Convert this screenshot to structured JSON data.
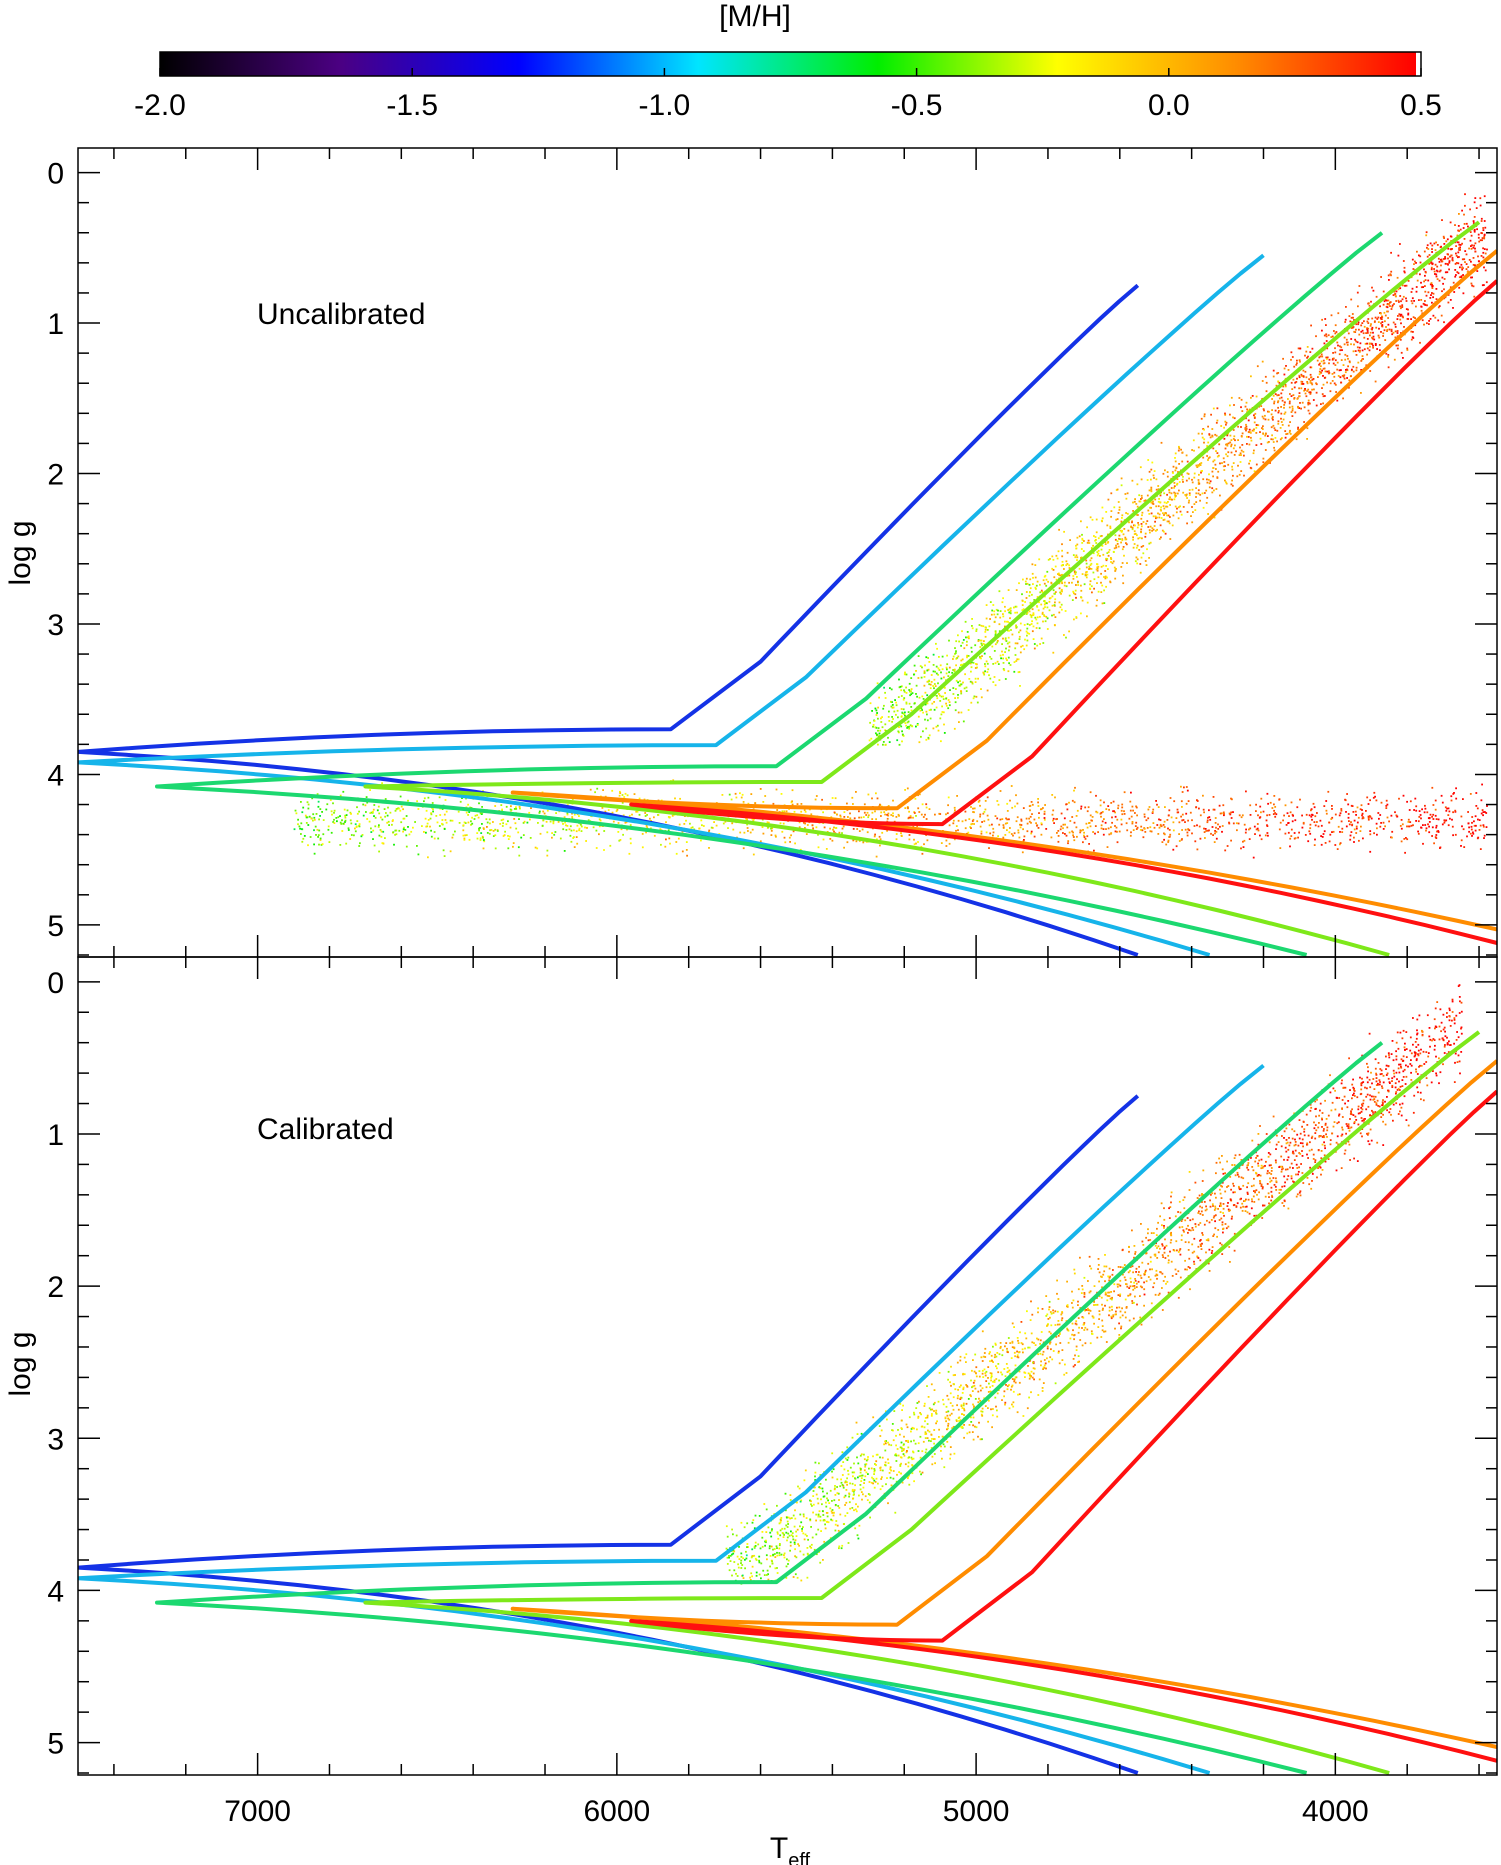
{
  "colorbar": {
    "title": "[M/H]",
    "range": [
      -2.0,
      0.5
    ],
    "ticks": [
      "-2.0",
      "-1.5",
      "-1.0",
      "-0.5",
      "0.0",
      "0.5"
    ],
    "tick_values": [
      -2.0,
      -1.5,
      -1.0,
      -0.5,
      0.0,
      0.5
    ],
    "colormap": [
      "#000000",
      "#4b0082",
      "#0000ff",
      "#00e5ff",
      "#00ee00",
      "#ffff00",
      "#ff8c00",
      "#ff0000"
    ]
  },
  "chart_data": [
    {
      "type": "scatter",
      "annotation": "Uncalibrated",
      "xlabel": "",
      "ylabel": "log g",
      "xlim": [
        7500,
        3550
      ],
      "ylim": [
        5.2,
        -0.15
      ],
      "x_ticks": [
        7000,
        6000,
        5000,
        4000
      ],
      "x_tick_labels": [
        "",
        "",
        "",
        ""
      ],
      "y_ticks": [
        0,
        1,
        2,
        3,
        4,
        5
      ],
      "y_tick_labels": [
        "0",
        "1",
        "2",
        "3",
        "4",
        "5"
      ],
      "color_by": "[M/H]",
      "point_clouds": [
        {
          "region": "giant branch",
          "teff_range": [
            5300,
            3580
          ],
          "logg_range": [
            0.1,
            3.8
          ],
          "mh_range": [
            -1.8,
            0.5
          ]
        },
        {
          "region": "main sequence / dwarfs",
          "teff_range": [
            6900,
            3580
          ],
          "logg_range": [
            3.9,
            4.9
          ],
          "mh_range": [
            -2.0,
            0.5
          ]
        }
      ],
      "isochrones": [
        {
          "mh": -1.5,
          "color": "#1432e6",
          "rgb_tip": [
            4550,
            0.75
          ],
          "msto": [
            7500,
            3.85
          ],
          "dwarf_end": [
            4550,
            5.2
          ]
        },
        {
          "mh": -1.2,
          "color": "#16b4ea",
          "rgb_tip": [
            4200,
            0.55
          ],
          "msto": [
            7500,
            3.92
          ],
          "dwarf_end": [
            4350,
            5.2
          ]
        },
        {
          "mh": -0.8,
          "color": "#1cd870",
          "rgb_tip": [
            3870,
            0.4
          ],
          "msto": [
            7280,
            4.08
          ],
          "dwarf_end": [
            4080,
            5.2
          ]
        },
        {
          "mh": -0.5,
          "color": "#7ee81a",
          "rgb_tip": [
            3600,
            0.33
          ],
          "msto": [
            6700,
            4.08
          ],
          "dwarf_end": [
            3850,
            5.2
          ]
        },
        {
          "mh": 0.0,
          "color": "#ff8c00",
          "rgb_tip": [
            3550,
            0.52
          ],
          "msto": [
            6290,
            4.12
          ],
          "dwarf_end": [
            3550,
            5.03
          ]
        },
        {
          "mh": 0.3,
          "color": "#ff1010",
          "rgb_tip": [
            3550,
            0.72
          ],
          "msto": [
            5960,
            4.2
          ],
          "dwarf_end": [
            3550,
            5.12
          ]
        }
      ]
    },
    {
      "type": "scatter",
      "annotation": "Calibrated",
      "xlabel": "T_eff",
      "ylabel": "log g",
      "xlim": [
        7500,
        3550
      ],
      "ylim": [
        5.2,
        -0.15
      ],
      "x_ticks": [
        7000,
        6000,
        5000,
        4000
      ],
      "x_tick_labels": [
        "7000",
        "6000",
        "5000",
        "4000"
      ],
      "y_ticks": [
        0,
        1,
        2,
        3,
        4,
        5
      ],
      "y_tick_labels": [
        "0",
        "1",
        "2",
        "3",
        "4",
        "5"
      ],
      "color_by": "[M/H]",
      "point_clouds": [
        {
          "region": "giant branch",
          "teff_range": [
            5700,
            3650
          ],
          "logg_range": [
            0.0,
            3.95
          ],
          "mh_range": [
            -1.8,
            0.5
          ]
        }
      ],
      "isochrones": [
        {
          "mh": -1.5,
          "color": "#1432e6",
          "rgb_tip": [
            4550,
            0.75
          ],
          "msto": [
            7500,
            3.85
          ],
          "dwarf_end": [
            4550,
            5.2
          ]
        },
        {
          "mh": -1.2,
          "color": "#16b4ea",
          "rgb_tip": [
            4200,
            0.55
          ],
          "msto": [
            7500,
            3.92
          ],
          "dwarf_end": [
            4350,
            5.2
          ]
        },
        {
          "mh": -0.8,
          "color": "#1cd870",
          "rgb_tip": [
            3870,
            0.4
          ],
          "msto": [
            7280,
            4.08
          ],
          "dwarf_end": [
            4080,
            5.2
          ]
        },
        {
          "mh": -0.5,
          "color": "#7ee81a",
          "rgb_tip": [
            3600,
            0.33
          ],
          "msto": [
            6700,
            4.08
          ],
          "dwarf_end": [
            3850,
            5.2
          ]
        },
        {
          "mh": 0.0,
          "color": "#ff8c00",
          "rgb_tip": [
            3550,
            0.52
          ],
          "msto": [
            6290,
            4.12
          ],
          "dwarf_end": [
            3550,
            5.03
          ]
        },
        {
          "mh": 0.3,
          "color": "#ff1010",
          "rgb_tip": [
            3550,
            0.72
          ],
          "msto": [
            5960,
            4.2
          ],
          "dwarf_end": [
            3550,
            5.12
          ]
        }
      ]
    }
  ]
}
